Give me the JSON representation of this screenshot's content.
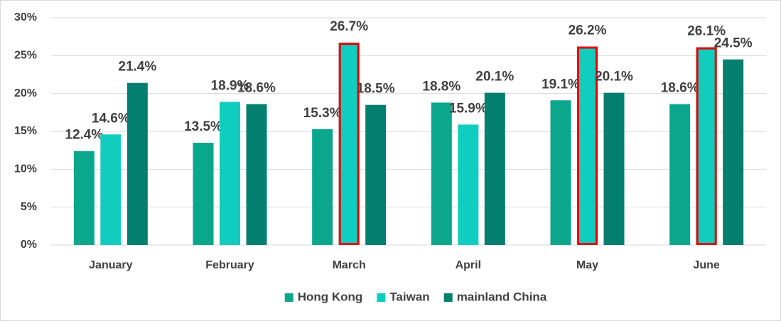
{
  "chart_data": {
    "type": "bar",
    "categories": [
      "January",
      "February",
      "March",
      "April",
      "May",
      "June"
    ],
    "series": [
      {
        "name": "Hong Kong",
        "color": "#0aa78d",
        "values": [
          12.4,
          13.5,
          15.3,
          18.8,
          19.1,
          18.6
        ],
        "value_labels": [
          "12.4%",
          "13.5%",
          "15.3%",
          "18.8%",
          "19.1%",
          "18.6%"
        ]
      },
      {
        "name": "Taiwan",
        "color": "#10cdbf",
        "values": [
          14.6,
          18.9,
          26.7,
          15.9,
          26.2,
          26.1
        ],
        "value_labels": [
          "14.6%",
          "18.9%",
          "26.7%",
          "15.9%",
          "26.2%",
          "26.1%"
        ]
      },
      {
        "name": "mainland China",
        "color": "#037f6f",
        "values": [
          21.4,
          18.6,
          18.5,
          20.1,
          20.1,
          24.5
        ],
        "value_labels": [
          "21.4%",
          "18.6%",
          "18.5%",
          "20.1%",
          "20.1%",
          "24.5%"
        ]
      }
    ],
    "ylim": [
      0,
      30
    ],
    "yticks": [
      {
        "value": 0,
        "label": "0%"
      },
      {
        "value": 5,
        "label": "5%"
      },
      {
        "value": 10,
        "label": "10%"
      },
      {
        "value": 15,
        "label": "15%"
      },
      {
        "value": 20,
        "label": "20%"
      },
      {
        "value": 25,
        "label": "25%"
      },
      {
        "value": 30,
        "label": "30%"
      }
    ],
    "grid": true,
    "legend": "bottom",
    "highlight_color": "#e60000",
    "highlights": [
      [
        1,
        2
      ],
      [
        1,
        4
      ],
      [
        1,
        5
      ]
    ]
  }
}
